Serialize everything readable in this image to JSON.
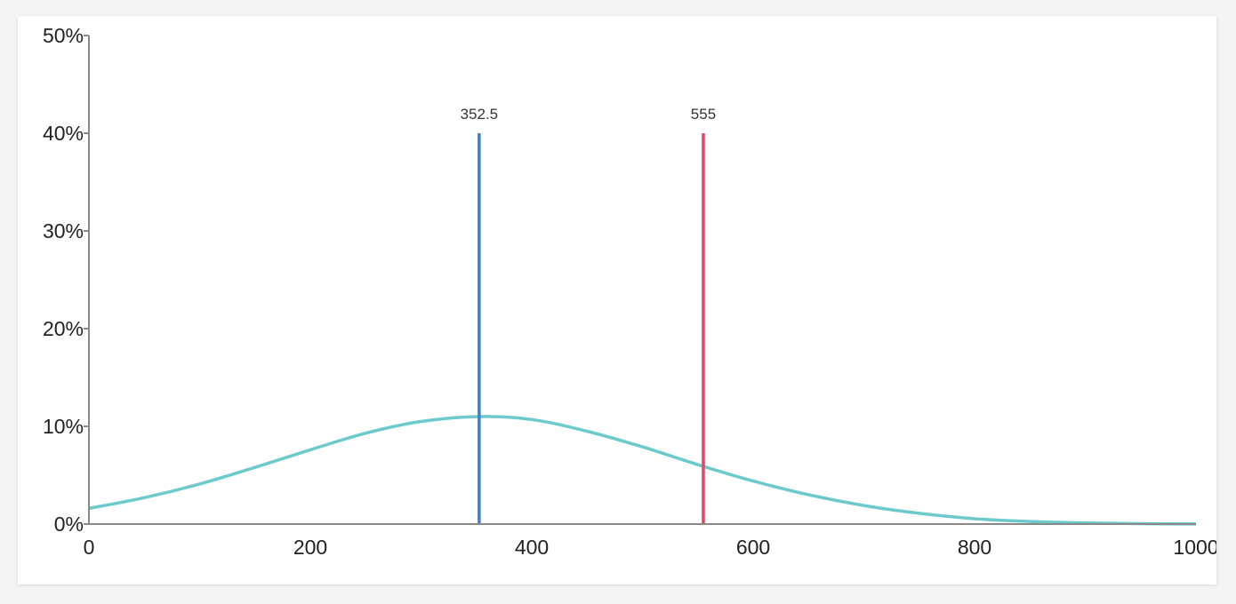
{
  "chart_data": {
    "type": "line",
    "title": "",
    "xlabel": "",
    "ylabel": "",
    "xlim": [
      0,
      1000
    ],
    "ylim": [
      0,
      50
    ],
    "y_unit": "%",
    "x_ticks": [
      "0",
      "200",
      "400",
      "600",
      "800",
      "1000"
    ],
    "y_ticks": [
      "0%",
      "10%",
      "20%",
      "30%",
      "40%",
      "50%"
    ],
    "grid": false,
    "legend": "none",
    "series": [
      {
        "color": "#6cc9cc",
        "x": [
          0,
          50,
          100,
          150,
          200,
          250,
          300,
          352.5,
          400,
          450,
          500,
          555,
          600,
          650,
          700,
          750,
          800,
          850,
          900,
          950,
          1000
        ],
        "y": [
          1.6,
          2.7,
          4.1,
          5.8,
          7.6,
          9.3,
          10.5,
          11.0,
          10.7,
          9.5,
          7.9,
          5.9,
          4.4,
          3.0,
          1.9,
          1.1,
          0.55,
          0.26,
          0.11,
          0.04,
          0.01
        ]
      }
    ],
    "markers": [
      {
        "label": "352.5",
        "x": 352.5,
        "top": 40,
        "color": "#3f7fc8"
      },
      {
        "label": "555",
        "x": 555,
        "top": 40,
        "color": "#d94a64"
      }
    ]
  }
}
